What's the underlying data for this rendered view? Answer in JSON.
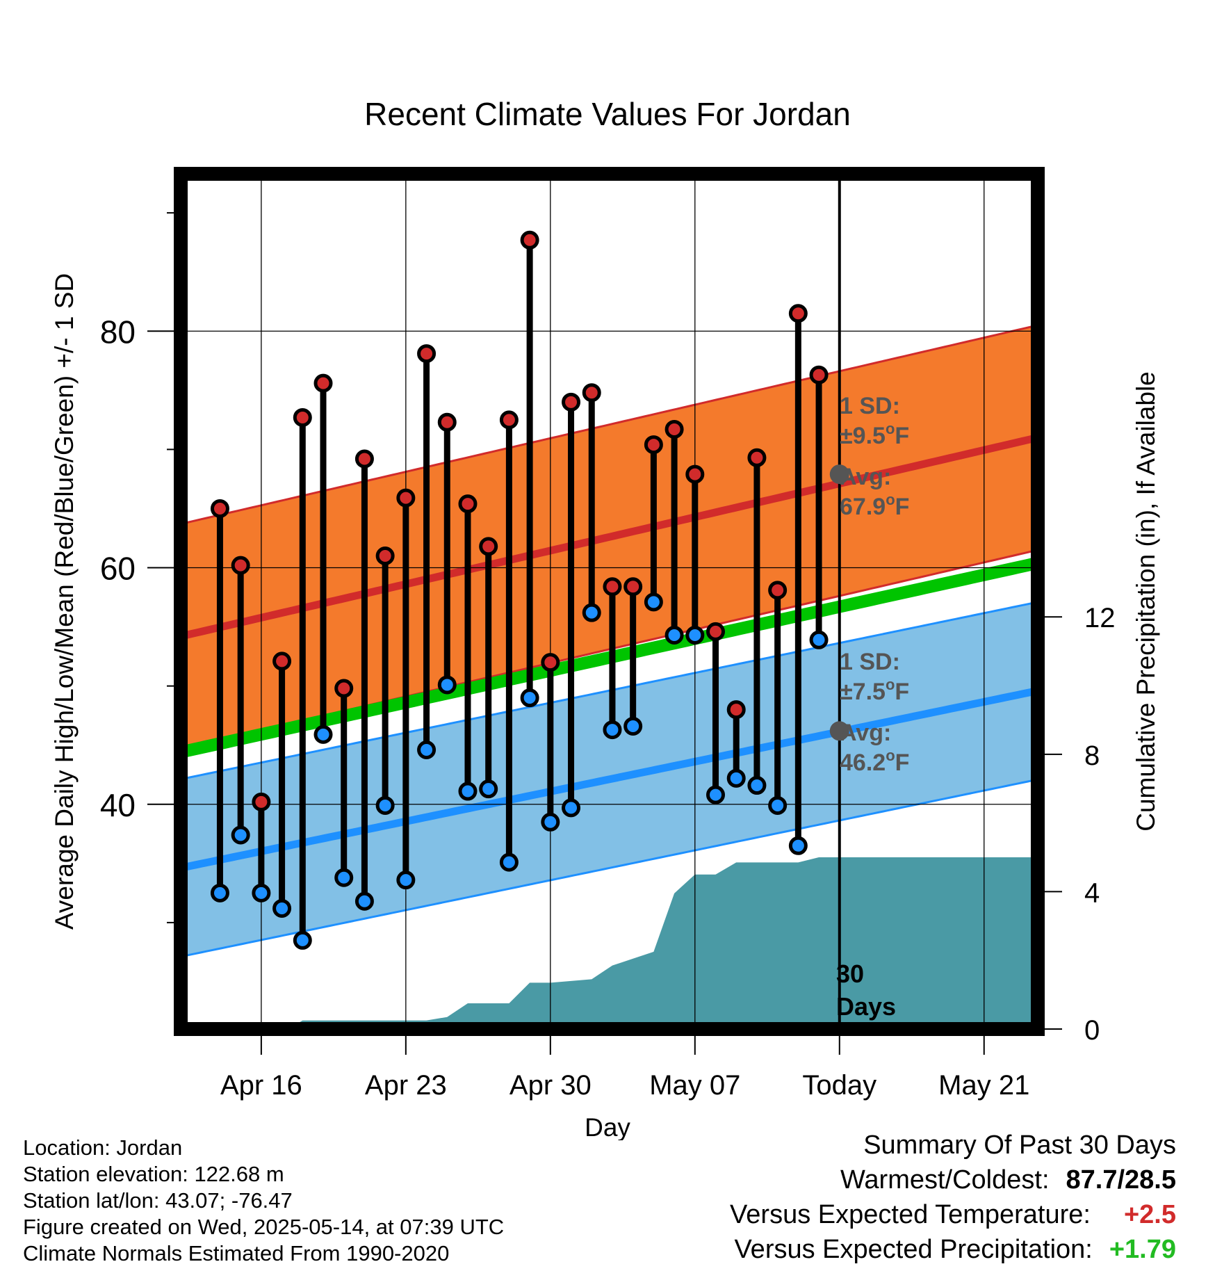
{
  "chart_data": {
    "type": "line",
    "title": "Recent Climate Values For Jordan",
    "xlabel": "Day",
    "ylabel_left": "Average Daily High/Low/Mean (Red/Blue/Green) +/- 1 SD",
    "ylabel_right": "Cumulative Precipitation (in), If Available",
    "x_tick_labels": [
      "Apr 16",
      "Apr 23",
      "Apr 30",
      "May 07",
      "Today",
      "May 21"
    ],
    "x_tick_days": [
      16,
      23,
      30,
      37,
      44,
      51
    ],
    "xlim_days": [
      12.1,
      53.6
    ],
    "today_day": 44,
    "ylim_temp": [
      21,
      93.3
    ],
    "y_ticks_temp": [
      40,
      60,
      80
    ],
    "ylim_precip": [
      0,
      24.9
    ],
    "y_ticks_precip": [
      0,
      4,
      8,
      12
    ],
    "normals": {
      "high_mean": {
        "start_day": 12.6,
        "start": 54.4,
        "end_day": 53.6,
        "end": 71.0
      },
      "high_sd": 9.5,
      "low_mean": {
        "start_day": 12.6,
        "start": 34.8,
        "end_day": 53.6,
        "end": 49.6
      },
      "low_sd": 7.5,
      "mean_line": {
        "start_day": 12.6,
        "start": 44.6,
        "end_day": 53.6,
        "end": 60.4
      },
      "colors": {
        "high_band": "#f47a2c",
        "high_line": "#d12b2b",
        "low_band": "#82c0e6",
        "low_line": "#1e90ff",
        "mean_line": "#00c400",
        "precip": "#4a9aa5"
      }
    },
    "annotations": {
      "high_sd_label": "1 SD:",
      "high_sd_value": "±9.5",
      "high_avg_label": "Avg:",
      "high_avg_value": "67.9",
      "low_sd_label": "1 SD:",
      "low_sd_value": "±7.5",
      "low_avg_label": "Avg:",
      "low_avg_value": "46.2",
      "unit": "F",
      "days_label_1": "30",
      "days_label_2": "Days",
      "high_avg_temp": 67.9,
      "low_avg_temp": 46.2
    },
    "daily": [
      {
        "day": 14,
        "high": 65.0,
        "low": 32.5
      },
      {
        "day": 15,
        "high": 60.2,
        "low": 37.4
      },
      {
        "day": 16,
        "high": 40.2,
        "low": 32.5
      },
      {
        "day": 17,
        "high": 52.1,
        "low": 31.2
      },
      {
        "day": 18,
        "high": 72.7,
        "low": 28.5
      },
      {
        "day": 19,
        "high": 75.6,
        "low": 45.9
      },
      {
        "day": 20,
        "high": 49.8,
        "low": 33.8
      },
      {
        "day": 21,
        "high": 69.2,
        "low": 31.8
      },
      {
        "day": 22,
        "high": 61.0,
        "low": 39.9
      },
      {
        "day": 23,
        "high": 65.9,
        "low": 33.6
      },
      {
        "day": 24,
        "high": 78.1,
        "low": 44.6
      },
      {
        "day": 25,
        "high": 72.3,
        "low": 50.1
      },
      {
        "day": 26,
        "high": 65.4,
        "low": 41.1
      },
      {
        "day": 27,
        "high": 61.8,
        "low": 41.3
      },
      {
        "day": 28,
        "high": 72.5,
        "low": 35.1
      },
      {
        "day": 29,
        "high": 87.7,
        "low": 49.0
      },
      {
        "day": 30,
        "high": 52.0,
        "low": 38.5
      },
      {
        "day": 31,
        "high": 74.0,
        "low": 39.7
      },
      {
        "day": 32,
        "high": 74.8,
        "low": 56.2
      },
      {
        "day": 33,
        "high": 58.4,
        "low": 46.3
      },
      {
        "day": 34,
        "high": 58.4,
        "low": 46.6
      },
      {
        "day": 35,
        "high": 70.4,
        "low": 57.1
      },
      {
        "day": 36,
        "high": 71.7,
        "low": 54.3
      },
      {
        "day": 37,
        "high": 67.9,
        "low": 54.3
      },
      {
        "day": 38,
        "high": 54.6,
        "low": 40.8
      },
      {
        "day": 39,
        "high": 48.0,
        "low": 42.2
      },
      {
        "day": 40,
        "high": 69.3,
        "low": 41.6
      },
      {
        "day": 41,
        "high": 58.1,
        "low": 39.9
      },
      {
        "day": 42,
        "high": 81.5,
        "low": 36.5
      },
      {
        "day": 43,
        "high": 76.3,
        "low": 53.9
      }
    ],
    "precip_cumulative": [
      {
        "day": 17.3,
        "value": 0.0
      },
      {
        "day": 18.0,
        "value": 0.25
      },
      {
        "day": 24.0,
        "value": 0.25
      },
      {
        "day": 25.0,
        "value": 0.35
      },
      {
        "day": 26.0,
        "value": 0.75
      },
      {
        "day": 28.0,
        "value": 0.75
      },
      {
        "day": 29.0,
        "value": 1.35
      },
      {
        "day": 30.0,
        "value": 1.35
      },
      {
        "day": 32.0,
        "value": 1.45
      },
      {
        "day": 33.0,
        "value": 1.85
      },
      {
        "day": 34.0,
        "value": 2.05
      },
      {
        "day": 35.0,
        "value": 2.25
      },
      {
        "day": 36.0,
        "value": 3.95
      },
      {
        "day": 37.0,
        "value": 4.5
      },
      {
        "day": 38.0,
        "value": 4.5
      },
      {
        "day": 39.0,
        "value": 4.85
      },
      {
        "day": 42.0,
        "value": 4.85
      },
      {
        "day": 43.0,
        "value": 5.0
      },
      {
        "day": 53.6,
        "value": 5.0
      }
    ]
  },
  "info": {
    "location": "Location: Jordan",
    "elevation": "Station elevation: 122.68 m",
    "latlon": "Station lat/lon: 43.07; -76.47",
    "created": "Figure created on Wed, 2025-05-14, at 07:39 UTC",
    "normals": "Climate Normals Estimated From 1990-2020"
  },
  "summary": {
    "title": "Summary Of Past 30 Days",
    "warmest_label": "Warmest/Coldest:",
    "warmest_value": "87.7/28.5",
    "temp_label": "Versus Expected Temperature:",
    "temp_value": "+2.5",
    "temp_color": "#d12b2b",
    "precip_label": "Versus Expected Precipitation:",
    "precip_value": "+1.79",
    "precip_color": "#22bb22"
  }
}
